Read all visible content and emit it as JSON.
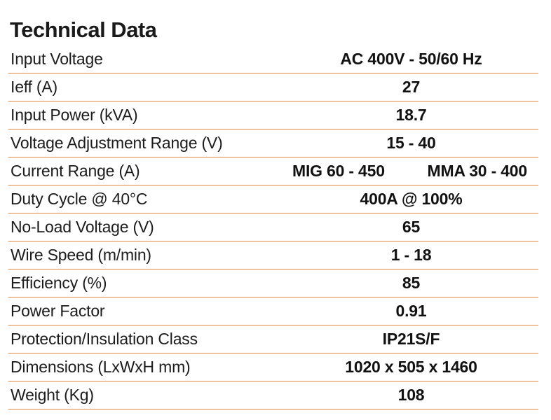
{
  "title": "Technical Data",
  "colors": {
    "rule": "#e08a3c",
    "text": "#1a1a1a"
  },
  "rows": [
    {
      "label": "Input Voltage",
      "value": "AC 400V - 50/60 Hz"
    },
    {
      "label": "Ieff (A)",
      "value": "27"
    },
    {
      "label": "Input Power (kVA)",
      "value": "18.7"
    },
    {
      "label": "Voltage Adjustment Range (V)",
      "value": "15 - 40"
    },
    {
      "label": "Current Range (A)",
      "value_a": "MIG 60 - 450",
      "value_b": "MMA 30 - 400"
    },
    {
      "label": "Duty Cycle @ 40°C",
      "value": "400A @ 100%"
    },
    {
      "label": "No-Load Voltage (V)",
      "value": "65"
    },
    {
      "label": "Wire Speed (m/min)",
      "value": "1 - 18"
    },
    {
      "label": "Efficiency (%)",
      "value": "85"
    },
    {
      "label": "Power Factor",
      "value": "0.91"
    },
    {
      "label": "Protection/Insulation Class",
      "value": "IP21S/F"
    },
    {
      "label": "Dimensions (LxWxH mm)",
      "value": "1020 x 505 x 1460"
    },
    {
      "label": "Weight (Kg)",
      "value": "108"
    }
  ]
}
